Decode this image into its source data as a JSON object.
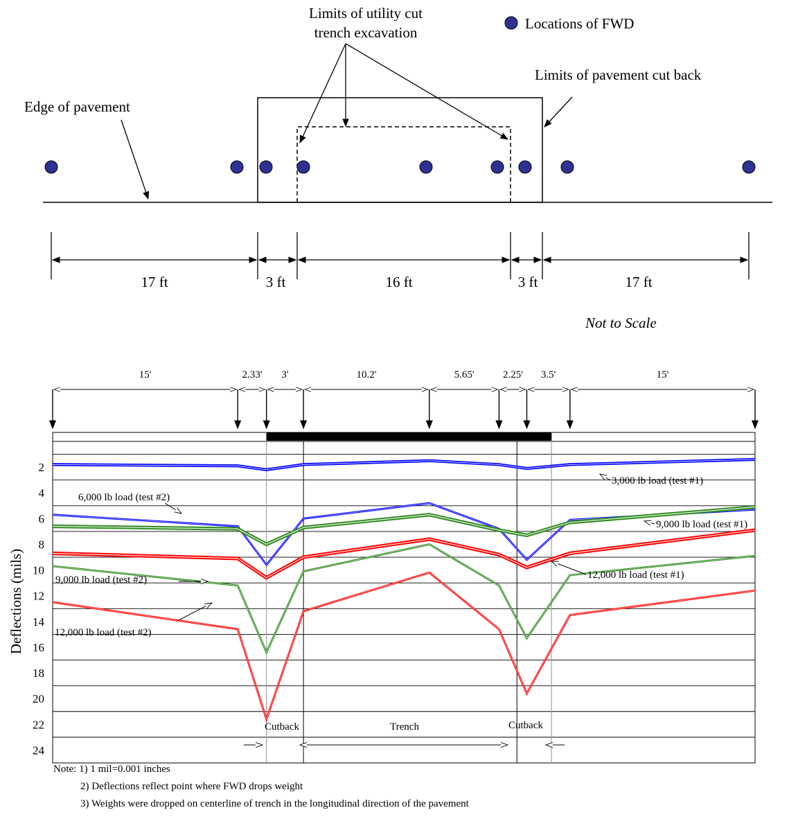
{
  "layout": {
    "fwd_legend": "Locations of FWD",
    "label_utility_cut_line1": "Limits of utility cut",
    "label_utility_cut_line2": "trench excavation",
    "label_cutback": "Limits of pavement cut back",
    "label_edge": "Edge of pavement",
    "dimensions": [
      "17 ft",
      "3 ft",
      "16 ft",
      "3 ft",
      "17 ft"
    ],
    "not_to_scale": "Not to Scale"
  },
  "chart_data": {
    "type": "line",
    "ylabel": "Deflections (mils)",
    "y_ticks": [
      2,
      4,
      6,
      8,
      10,
      12,
      14,
      16,
      18,
      20,
      22,
      24
    ],
    "ylim": [
      0,
      25
    ],
    "y_inverted": true,
    "spacing_labels": [
      "15'",
      "2.33'",
      "3'",
      "10.2'",
      "5.65'",
      "2.25'",
      "3.5'",
      "15'"
    ],
    "x_positions": [
      0,
      15,
      17.33,
      20.33,
      30.53,
      36.18,
      38.43,
      41.93,
      56.93
    ],
    "x_range": [
      0,
      56.93
    ],
    "trench_limits": [
      20.33,
      37.63
    ],
    "cutback_limits": [
      17.33,
      40.43
    ],
    "series": [
      {
        "name": "3,000 lb load (test #1)",
        "color": "#0000ff",
        "width": 3,
        "values": [
          1.8,
          1.9,
          2.2,
          1.8,
          1.5,
          1.8,
          2.1,
          1.8,
          1.4
        ]
      },
      {
        "name": "6,000 lb load (test #2)",
        "color": "#0000ff",
        "width": 1.6,
        "values": [
          5.7,
          6.6,
          9.6,
          6.0,
          4.8,
          6.8,
          9.2,
          6.1,
          5.3
        ]
      },
      {
        "name": "9,000 lb load (test #1)",
        "color": "#2e8b1e",
        "width": 4,
        "values": [
          6.6,
          6.8,
          8.0,
          6.7,
          5.7,
          6.9,
          7.3,
          6.3,
          5.1
        ]
      },
      {
        "name": "12,000 lb load (test #1)",
        "color": "#ff0000",
        "width": 4,
        "values": [
          8.7,
          9.1,
          10.6,
          9.0,
          7.6,
          8.8,
          9.8,
          8.7,
          6.9
        ]
      },
      {
        "name": "9,000 lb load (test #2)",
        "color": "#2e8b1e",
        "width": 1.6,
        "values": [
          9.7,
          11.2,
          16.4,
          10.1,
          8.0,
          11.2,
          15.3,
          10.4,
          8.9
        ]
      },
      {
        "name": "12,000 lb load (test #2)",
        "color": "#ff0000",
        "width": 1.6,
        "values": [
          12.5,
          14.6,
          21.6,
          13.2,
          10.2,
          14.6,
          19.6,
          13.5,
          11.6
        ]
      }
    ],
    "annotations": {
      "cutback_left": "Cutback",
      "trench": "Trench",
      "cutback_right": "Cutback"
    }
  },
  "notes": [
    "Note: 1) 1 mil=0.001 inches",
    "2) Deflections reflect point where FWD drops weight",
    "3) Weights were dropped on centerline of trench in the longitudinal direction of the pavement"
  ]
}
